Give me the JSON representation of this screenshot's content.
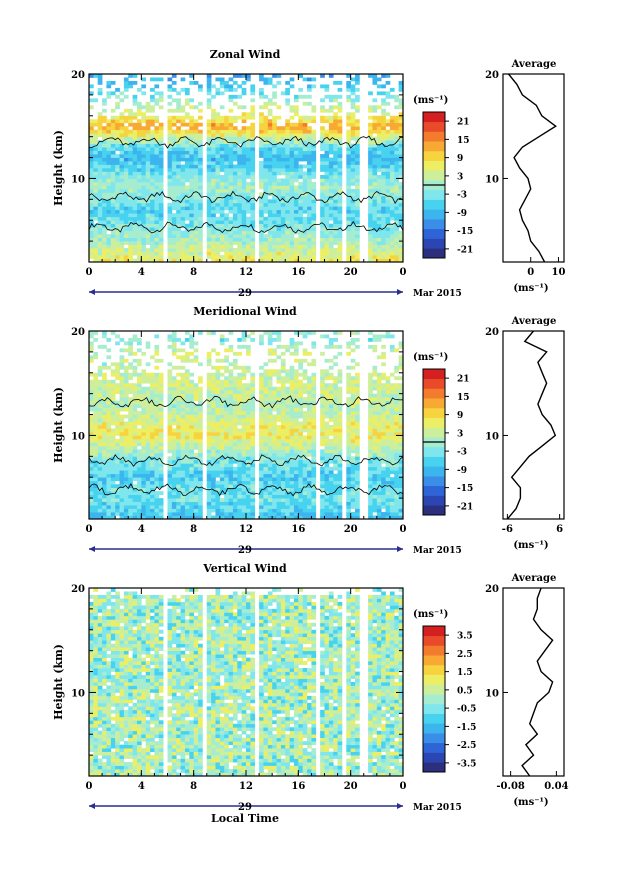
{
  "figure": {
    "xlabel": "Local Time",
    "ylabel": "Height (km)",
    "date_label": "Mar 2015",
    "day_label": "29"
  },
  "colorscale": [
    "#2c2f7e",
    "#2b46b3",
    "#2e64d6",
    "#3b8ee8",
    "#3cb4ee",
    "#47d3ef",
    "#7ee6ec",
    "#a6edd0",
    "#cdef9c",
    "#ecef64",
    "#f6d33f",
    "#f7a934",
    "#f27b2e",
    "#e84a2a",
    "#d42020"
  ],
  "chart_data": [
    {
      "type": "heatmap",
      "title": "Zonal Wind",
      "unit": "(ms⁻¹)",
      "x_ticks": [
        "0",
        "4",
        "8",
        "12",
        "16",
        "20",
        "0"
      ],
      "y_ticks": [
        "20",
        "10"
      ],
      "xlim": [
        0,
        24
      ],
      "ylim": [
        2,
        20
      ],
      "colorbar_ticks": [
        "21",
        "15",
        "9",
        "3",
        "-3",
        "-9",
        "-15",
        "-21"
      ],
      "colorbar_range": [
        -24,
        24
      ],
      "profile": {
        "title": "Average",
        "x_ticks": [
          "0",
          "10"
        ],
        "xlim": [
          -10,
          12
        ],
        "xlabel": "(ms⁻¹)",
        "y_ticks": [
          "20",
          "10"
        ],
        "height_km": [
          2,
          3,
          4,
          5,
          6,
          7,
          8,
          9,
          10,
          11,
          12,
          13,
          14,
          15,
          16,
          17,
          18,
          19,
          20
        ],
        "values": [
          5,
          3,
          0,
          -1,
          -3,
          -4,
          -2,
          0,
          -1,
          -4,
          -6,
          -3,
          3,
          9,
          4,
          2,
          -3,
          -5,
          -8
        ]
      }
    },
    {
      "type": "heatmap",
      "title": "Meridional Wind",
      "unit": "(ms⁻¹)",
      "x_ticks": [
        "0",
        "4",
        "8",
        "12",
        "16",
        "20",
        "0"
      ],
      "y_ticks": [
        "20",
        "10"
      ],
      "xlim": [
        0,
        24
      ],
      "ylim": [
        2,
        20
      ],
      "colorbar_ticks": [
        "21",
        "15",
        "9",
        "3",
        "-3",
        "-9",
        "-15",
        "-21"
      ],
      "colorbar_range": [
        -24,
        24
      ],
      "profile": {
        "title": "Average",
        "x_ticks": [
          "-6",
          "6"
        ],
        "xlim": [
          -7,
          7
        ],
        "xlabel": "(ms⁻¹)",
        "y_ticks": [
          "20",
          "10"
        ],
        "height_km": [
          2,
          3,
          4,
          5,
          6,
          7,
          8,
          9,
          10,
          11,
          12,
          13,
          14,
          15,
          16,
          17,
          18,
          19,
          20
        ],
        "values": [
          -6,
          -4,
          -3,
          -3,
          -5,
          -3,
          -1,
          2,
          5,
          4,
          2,
          1,
          2,
          3,
          2,
          1,
          3,
          -2,
          0
        ]
      }
    },
    {
      "type": "heatmap",
      "title": "Vertical Wind",
      "unit": "(ms⁻¹)",
      "x_ticks": [
        "0",
        "4",
        "8",
        "12",
        "16",
        "20",
        "0"
      ],
      "y_ticks": [
        "20",
        "10"
      ],
      "xlim": [
        0,
        24
      ],
      "ylim": [
        2,
        20
      ],
      "colorbar_ticks": [
        "3.5",
        "2.5",
        "1.5",
        "0.5",
        "-0.5",
        "-1.5",
        "-2.5",
        "-3.5"
      ],
      "colorbar_range": [
        -4,
        4
      ],
      "profile": {
        "title": "Average",
        "x_ticks": [
          "-0.08",
          "0.04"
        ],
        "xlim": [
          -0.1,
          0.06
        ],
        "xlabel": "(ms⁻¹)",
        "y_ticks": [
          "20",
          "10"
        ],
        "height_km": [
          2,
          3,
          4,
          5,
          6,
          7,
          8,
          9,
          10,
          11,
          12,
          13,
          14,
          15,
          16,
          17,
          18,
          19,
          20
        ],
        "values": [
          -0.03,
          -0.05,
          -0.02,
          -0.04,
          -0.01,
          -0.03,
          -0.02,
          -0.01,
          0.02,
          0.03,
          0.0,
          -0.01,
          0.01,
          0.03,
          0.0,
          -0.02,
          -0.01,
          -0.01,
          0.0
        ]
      }
    }
  ]
}
